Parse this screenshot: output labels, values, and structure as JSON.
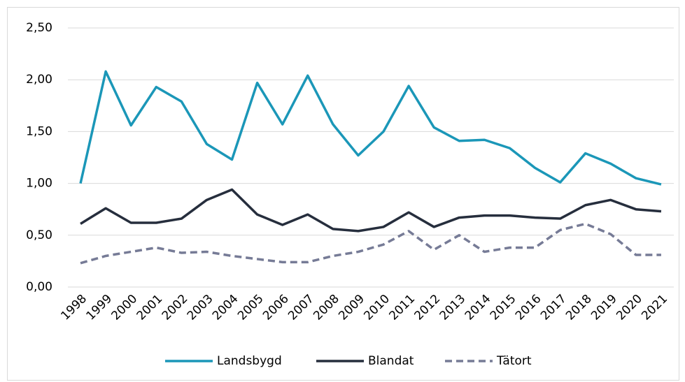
{
  "chart_data": {
    "type": "line",
    "categories": [
      "1998",
      "1999",
      "2000",
      "2001",
      "2002",
      "2003",
      "2004",
      "2005",
      "2006",
      "2007",
      "2008",
      "2009",
      "2010",
      "2011",
      "2012",
      "2013",
      "2014",
      "2015",
      "2016",
      "2017",
      "2018",
      "2019",
      "2020",
      "2021"
    ],
    "series": [
      {
        "name": "Landsbygd",
        "color": "#1b97b8",
        "dash": false,
        "values": [
          1.0,
          2.08,
          1.56,
          1.93,
          1.79,
          1.38,
          1.23,
          1.97,
          1.57,
          2.04,
          1.57,
          1.27,
          1.5,
          1.94,
          1.54,
          1.41,
          1.42,
          1.34,
          1.15,
          1.01,
          1.29,
          1.19,
          1.05,
          0.99
        ]
      },
      {
        "name": "Blandat",
        "color": "#262e3d",
        "dash": false,
        "values": [
          0.61,
          0.76,
          0.62,
          0.62,
          0.66,
          0.84,
          0.94,
          0.7,
          0.6,
          0.7,
          0.56,
          0.54,
          0.58,
          0.72,
          0.58,
          0.67,
          0.69,
          0.69,
          0.67,
          0.66,
          0.79,
          0.84,
          0.75,
          0.73
        ]
      },
      {
        "name": "Tätort",
        "color": "#767b96",
        "dash": true,
        "values": [
          0.23,
          0.3,
          0.34,
          0.38,
          0.33,
          0.34,
          0.3,
          0.27,
          0.24,
          0.24,
          0.3,
          0.34,
          0.41,
          0.54,
          0.36,
          0.5,
          0.34,
          0.38,
          0.38,
          0.55,
          0.61,
          0.51,
          0.31,
          0.31
        ]
      }
    ],
    "ylim": [
      0,
      2.5
    ],
    "yticks": [
      {
        "value": 0,
        "label": "0,00"
      },
      {
        "value": 0.5,
        "label": "0,50"
      },
      {
        "value": 1,
        "label": "1,00"
      },
      {
        "value": 1.5,
        "label": "1,50"
      },
      {
        "value": 2,
        "label": "2,00"
      },
      {
        "value": 2.5,
        "label": "2,50"
      }
    ],
    "grid": true,
    "legend": "bottom"
  }
}
